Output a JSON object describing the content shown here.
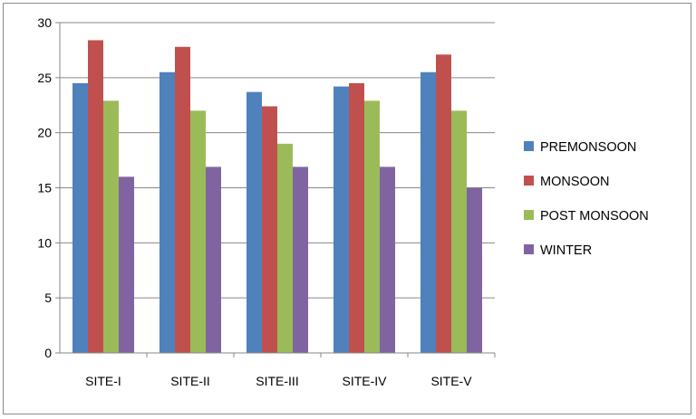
{
  "chart_data": {
    "type": "bar",
    "title": "",
    "xlabel": "",
    "ylabel": "",
    "categories": [
      "SITE-I",
      "SITE-II",
      "SITE-III",
      "SITE-IV",
      "SITE-V"
    ],
    "series": [
      {
        "name": "PREMONSOON",
        "color": "#4f81bd",
        "values": [
          24.5,
          25.5,
          23.7,
          24.2,
          25.5
        ]
      },
      {
        "name": "MONSOON",
        "color": "#c0504d",
        "values": [
          28.4,
          27.8,
          22.4,
          24.5,
          27.1
        ]
      },
      {
        "name": "POST MONSOON",
        "color": "#9bbb59",
        "values": [
          22.9,
          22.0,
          19.0,
          22.9,
          22.0
        ]
      },
      {
        "name": "WINTER",
        "color": "#8064a2",
        "values": [
          16.0,
          16.9,
          16.9,
          16.9,
          15.0
        ]
      }
    ],
    "ylim": [
      0,
      30
    ],
    "yticks": [
      "0",
      "5",
      "10",
      "15",
      "20",
      "25",
      "30"
    ],
    "grid": true,
    "legend_position": "right"
  }
}
